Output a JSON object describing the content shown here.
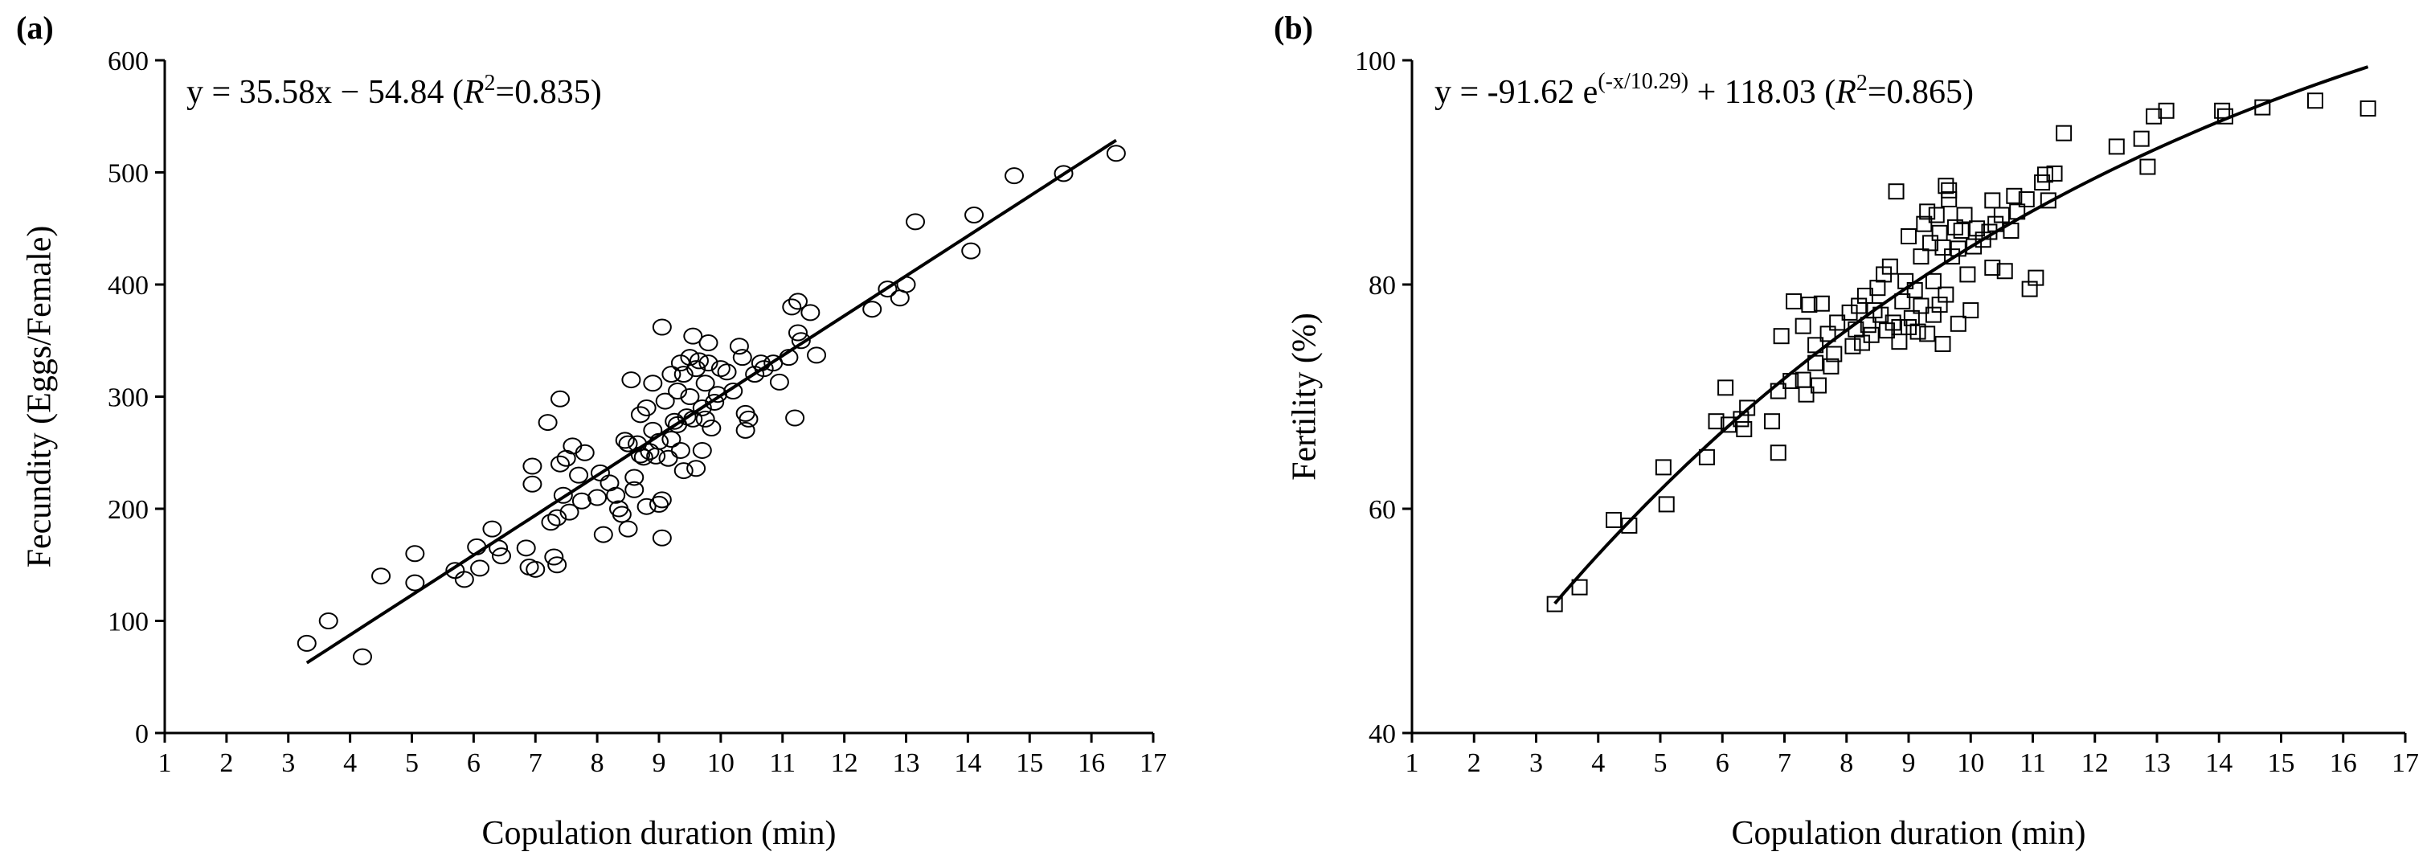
{
  "chart_data": [
    {
      "type": "scatter",
      "panel_label": "(a)",
      "xlabel": "Copulation duration (min)",
      "ylabel": "Fecundity (Eggs/Female)",
      "xlim": [
        1,
        17
      ],
      "ylim": [
        0,
        600
      ],
      "xticks": [
        1,
        2,
        3,
        4,
        5,
        6,
        7,
        8,
        9,
        10,
        11,
        12,
        13,
        14,
        15,
        16,
        17
      ],
      "yticks": [
        0,
        100,
        200,
        300,
        400,
        500,
        600
      ],
      "marker": "circle",
      "equation": {
        "lhs": "y = 35.58x − 54.84 (",
        "r2_symbol": "R",
        "r2_sup": "2",
        "r2_value": "=0.835)"
      },
      "fit": {
        "kind": "linear",
        "slope": 35.58,
        "intercept": -54.84,
        "x_range": [
          3.3,
          16.4
        ]
      },
      "points": [
        [
          3.3,
          80
        ],
        [
          3.65,
          100
        ],
        [
          4.2,
          68
        ],
        [
          4.5,
          140
        ],
        [
          5.05,
          160
        ],
        [
          5.05,
          134
        ],
        [
          5.7,
          145
        ],
        [
          5.85,
          137
        ],
        [
          6.05,
          166
        ],
        [
          6.1,
          147
        ],
        [
          6.3,
          182
        ],
        [
          6.4,
          165
        ],
        [
          6.45,
          158
        ],
        [
          6.85,
          165
        ],
        [
          6.9,
          148
        ],
        [
          6.95,
          238
        ],
        [
          7.0,
          146
        ],
        [
          6.95,
          222
        ],
        [
          7.2,
          277
        ],
        [
          7.25,
          188
        ],
        [
          7.3,
          157
        ],
        [
          7.35,
          150
        ],
        [
          7.35,
          192
        ],
        [
          7.4,
          298
        ],
        [
          7.4,
          240
        ],
        [
          7.45,
          212
        ],
        [
          7.5,
          245
        ],
        [
          7.55,
          197
        ],
        [
          7.6,
          256
        ],
        [
          7.7,
          230
        ],
        [
          7.75,
          207
        ],
        [
          7.8,
          250
        ],
        [
          8.0,
          210
        ],
        [
          8.05,
          232
        ],
        [
          8.1,
          177
        ],
        [
          8.2,
          223
        ],
        [
          8.3,
          212
        ],
        [
          8.35,
          200
        ],
        [
          8.4,
          195
        ],
        [
          8.45,
          261
        ],
        [
          8.5,
          258
        ],
        [
          8.5,
          182
        ],
        [
          8.55,
          315
        ],
        [
          8.6,
          228
        ],
        [
          8.6,
          217
        ],
        [
          8.65,
          258
        ],
        [
          8.7,
          248
        ],
        [
          8.7,
          284
        ],
        [
          8.75,
          246
        ],
        [
          8.8,
          290
        ],
        [
          8.8,
          202
        ],
        [
          8.85,
          251
        ],
        [
          8.9,
          270
        ],
        [
          8.9,
          312
        ],
        [
          8.95,
          247
        ],
        [
          9.0,
          260
        ],
        [
          9.0,
          204
        ],
        [
          9.05,
          362
        ],
        [
          9.05,
          208
        ],
        [
          9.05,
          174
        ],
        [
          9.1,
          296
        ],
        [
          9.15,
          245
        ],
        [
          9.2,
          320
        ],
        [
          9.2,
          262
        ],
        [
          9.25,
          278
        ],
        [
          9.3,
          305
        ],
        [
          9.3,
          275
        ],
        [
          9.35,
          330
        ],
        [
          9.35,
          252
        ],
        [
          9.4,
          320
        ],
        [
          9.4,
          234
        ],
        [
          9.45,
          282
        ],
        [
          9.5,
          335
        ],
        [
          9.5,
          300
        ],
        [
          9.55,
          354
        ],
        [
          9.55,
          280
        ],
        [
          9.6,
          325
        ],
        [
          9.6,
          236
        ],
        [
          9.65,
          332
        ],
        [
          9.7,
          290
        ],
        [
          9.7,
          252
        ],
        [
          9.75,
          280
        ],
        [
          9.75,
          312
        ],
        [
          9.8,
          348
        ],
        [
          9.8,
          330
        ],
        [
          9.85,
          272
        ],
        [
          9.9,
          295
        ],
        [
          9.95,
          302
        ],
        [
          10.0,
          325
        ],
        [
          10.1,
          322
        ],
        [
          10.2,
          305
        ],
        [
          10.3,
          345
        ],
        [
          10.35,
          335
        ],
        [
          10.4,
          285
        ],
        [
          10.4,
          270
        ],
        [
          10.45,
          280
        ],
        [
          10.55,
          320
        ],
        [
          10.65,
          330
        ],
        [
          10.7,
          325
        ],
        [
          10.85,
          330
        ],
        [
          10.95,
          313
        ],
        [
          11.1,
          335
        ],
        [
          11.15,
          380
        ],
        [
          11.2,
          281
        ],
        [
          11.25,
          385
        ],
        [
          11.25,
          357
        ],
        [
          11.3,
          350
        ],
        [
          11.45,
          375
        ],
        [
          11.55,
          337
        ],
        [
          12.45,
          378
        ],
        [
          12.7,
          396
        ],
        [
          12.9,
          388
        ],
        [
          13.0,
          400
        ],
        [
          13.15,
          456
        ],
        [
          14.05,
          430
        ],
        [
          14.1,
          462
        ],
        [
          14.75,
          497
        ],
        [
          15.55,
          499
        ],
        [
          16.4,
          517
        ]
      ]
    },
    {
      "type": "scatter",
      "panel_label": "(b)",
      "xlabel": "Copulation duration (min)",
      "ylabel": "Fertility (%)",
      "xlim": [
        1,
        17
      ],
      "ylim": [
        40,
        100
      ],
      "xticks": [
        1,
        2,
        3,
        4,
        5,
        6,
        7,
        8,
        9,
        10,
        11,
        12,
        13,
        14,
        15,
        16,
        17
      ],
      "yticks": [
        40,
        60,
        80,
        100
      ],
      "marker": "square",
      "equation": {
        "lhs": "y = -91.62 e",
        "exp_sup": "(-x/10.29)",
        "mid": " + 118.03 (",
        "r2_symbol": "R",
        "r2_sup": "2",
        "r2_value": "=0.865)"
      },
      "fit": {
        "kind": "exponential",
        "a": -91.62,
        "b": 10.29,
        "c": 118.03,
        "x_range": [
          3.3,
          16.4
        ]
      },
      "points": [
        [
          3.3,
          51.5
        ],
        [
          3.7,
          53
        ],
        [
          4.25,
          59
        ],
        [
          4.5,
          58.5
        ],
        [
          5.05,
          63.7
        ],
        [
          5.1,
          60.4
        ],
        [
          5.75,
          64.6
        ],
        [
          5.9,
          67.8
        ],
        [
          6.05,
          70.8
        ],
        [
          6.1,
          67.5
        ],
        [
          6.3,
          68
        ],
        [
          6.35,
          67.1
        ],
        [
          6.4,
          69
        ],
        [
          6.8,
          67.8
        ],
        [
          6.9,
          70.5
        ],
        [
          6.9,
          65
        ],
        [
          6.95,
          75.4
        ],
        [
          7.1,
          71.4
        ],
        [
          7.15,
          78.5
        ],
        [
          7.3,
          76.3
        ],
        [
          7.3,
          71.5
        ],
        [
          7.35,
          70.2
        ],
        [
          7.4,
          78.2
        ],
        [
          7.5,
          74.6
        ],
        [
          7.5,
          73
        ],
        [
          7.55,
          71
        ],
        [
          7.6,
          78.3
        ],
        [
          7.7,
          75.6
        ],
        [
          7.75,
          72.7
        ],
        [
          7.8,
          73.8
        ],
        [
          7.85,
          76.6
        ],
        [
          8.05,
          77.5
        ],
        [
          8.1,
          74.5
        ],
        [
          8.15,
          76
        ],
        [
          8.2,
          78.1
        ],
        [
          8.25,
          74.8
        ],
        [
          8.3,
          79
        ],
        [
          8.35,
          76.4
        ],
        [
          8.4,
          75.5
        ],
        [
          8.45,
          77.7
        ],
        [
          8.5,
          79.7
        ],
        [
          8.55,
          77.3
        ],
        [
          8.6,
          80.9
        ],
        [
          8.65,
          75.9
        ],
        [
          8.7,
          81.6
        ],
        [
          8.75,
          76.6
        ],
        [
          8.8,
          88.3
        ],
        [
          8.85,
          76.2
        ],
        [
          8.85,
          74.9
        ],
        [
          8.9,
          78.5
        ],
        [
          8.95,
          80.3
        ],
        [
          9.0,
          84.3
        ],
        [
          9.0,
          76.2
        ],
        [
          9.05,
          77
        ],
        [
          9.1,
          79.5
        ],
        [
          9.15,
          75.8
        ],
        [
          9.2,
          82.5
        ],
        [
          9.2,
          78.1
        ],
        [
          9.25,
          85.4
        ],
        [
          9.3,
          86.5
        ],
        [
          9.3,
          75.6
        ],
        [
          9.35,
          83.7
        ],
        [
          9.4,
          80.3
        ],
        [
          9.4,
          77.3
        ],
        [
          9.45,
          86.2
        ],
        [
          9.5,
          84.6
        ],
        [
          9.5,
          78.2
        ],
        [
          9.55,
          83.3
        ],
        [
          9.55,
          74.7
        ],
        [
          9.6,
          88.8
        ],
        [
          9.6,
          79.1
        ],
        [
          9.65,
          88.4
        ],
        [
          9.65,
          87.6
        ],
        [
          9.7,
          82.5
        ],
        [
          9.75,
          85.1
        ],
        [
          9.8,
          83.2
        ],
        [
          9.8,
          76.5
        ],
        [
          9.85,
          84.8
        ],
        [
          9.9,
          86.2
        ],
        [
          9.95,
          80.9
        ],
        [
          10.0,
          77.7
        ],
        [
          10.05,
          83.4
        ],
        [
          10.1,
          85
        ],
        [
          10.2,
          84
        ],
        [
          10.3,
          84.7
        ],
        [
          10.35,
          87.5
        ],
        [
          10.35,
          81.5
        ],
        [
          10.4,
          85.4
        ],
        [
          10.5,
          86.2
        ],
        [
          10.55,
          81.2
        ],
        [
          10.65,
          84.8
        ],
        [
          10.7,
          87.9
        ],
        [
          10.75,
          86.5
        ],
        [
          10.9,
          87.6
        ],
        [
          10.95,
          79.6
        ],
        [
          11.05,
          80.6
        ],
        [
          11.15,
          89.1
        ],
        [
          11.2,
          89.8
        ],
        [
          11.25,
          87.5
        ],
        [
          11.35,
          89.9
        ],
        [
          11.5,
          93.5
        ],
        [
          12.35,
          92.3
        ],
        [
          12.75,
          93
        ],
        [
          12.85,
          90.5
        ],
        [
          12.95,
          95
        ],
        [
          13.15,
          95.5
        ],
        [
          14.05,
          95.5
        ],
        [
          14.1,
          95
        ],
        [
          14.7,
          95.8
        ],
        [
          15.55,
          96.4
        ],
        [
          16.4,
          95.7
        ]
      ]
    }
  ]
}
